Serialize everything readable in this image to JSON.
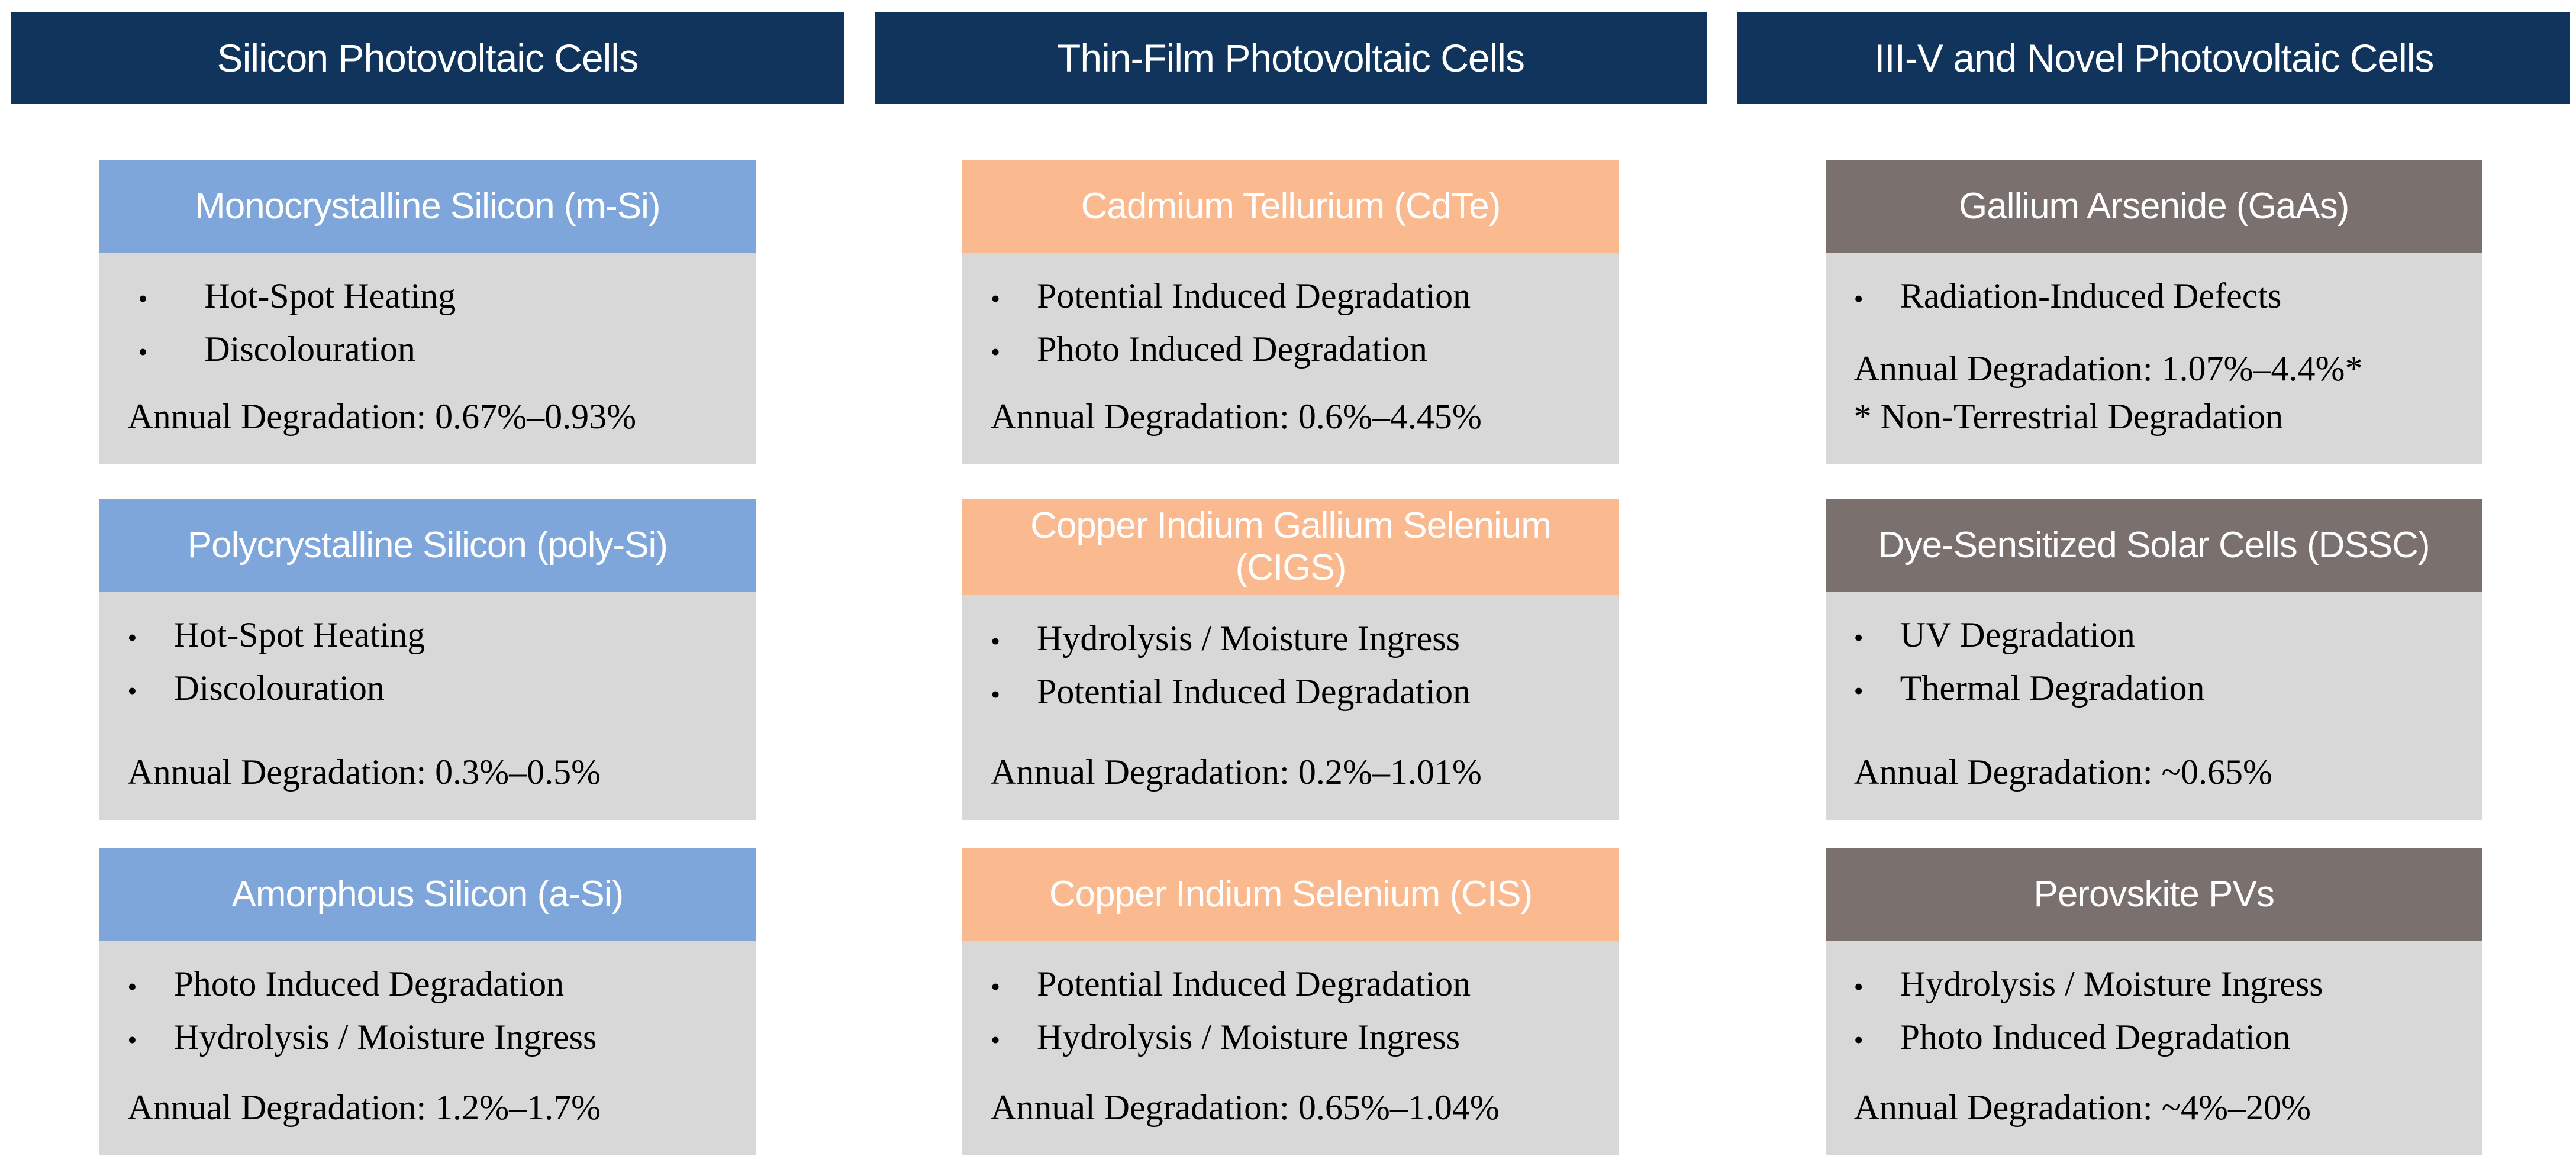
{
  "palette": {
    "navy": "#10345C",
    "blue": "#7EA6DB",
    "orange": "#FAB98E",
    "gray": "#7A716E",
    "cardBody": "#D8D8D8",
    "headerText": "#FFFFFF",
    "bodyText": "#000000",
    "pageBg": "#FFFFFF"
  },
  "glyphs": {
    "bullet": "•"
  },
  "columns": [
    {
      "header": "Silicon Photovoltaic Cells",
      "cards": [
        {
          "title": "Monocrystalline Silicon (m-Si)",
          "bullets": [
            "Hot-Spot Heating",
            "Discolouration"
          ],
          "annual": "Annual Degradation: 0.67%–0.93%"
        },
        {
          "title": "Polycrystalline Silicon (poly-Si)",
          "bullets": [
            "Hot-Spot Heating",
            "Discolouration"
          ],
          "annual": "Annual Degradation: 0.3%–0.5%"
        },
        {
          "title": "Amorphous Silicon (a-Si)",
          "bullets": [
            "Photo Induced Degradation",
            "Hydrolysis / Moisture Ingress"
          ],
          "annual": "Annual Degradation: 1.2%–1.7%"
        }
      ]
    },
    {
      "header": "Thin-Film Photovoltaic Cells",
      "cards": [
        {
          "title": "Cadmium Tellurium (CdTe)",
          "bullets": [
            "Potential Induced Degradation",
            "Photo Induced Degradation"
          ],
          "annual": "Annual Degradation: 0.6%–4.45%"
        },
        {
          "title": "Copper Indium Gallium Selenium (CIGS)",
          "bullets": [
            "Hydrolysis / Moisture Ingress",
            "Potential Induced Degradation"
          ],
          "annual": "Annual Degradation: 0.2%–1.01%"
        },
        {
          "title": "Copper Indium Selenium (CIS)",
          "bullets": [
            "Potential Induced Degradation",
            "Hydrolysis / Moisture Ingress"
          ],
          "annual": "Annual Degradation: 0.65%–1.04%"
        }
      ]
    },
    {
      "header": "III-V and Novel Photovoltaic Cells",
      "cards": [
        {
          "title": "Gallium Arsenide (GaAs)",
          "bullets": [
            "Radiation-Induced Defects"
          ],
          "annual": "Annual Degradation: 1.07%–4.4%*",
          "note": "* Non-Terrestrial Degradation"
        },
        {
          "title": "Dye-Sensitized Solar Cells (DSSC)",
          "bullets": [
            "UV Degradation",
            "Thermal Degradation"
          ],
          "annual": "Annual Degradation: ~0.65%"
        },
        {
          "title": "Perovskite PVs",
          "bullets": [
            "Hydrolysis / Moisture Ingress",
            "Photo Induced Degradation"
          ],
          "annual": "Annual Degradation: ~4%–20%"
        }
      ]
    }
  ]
}
